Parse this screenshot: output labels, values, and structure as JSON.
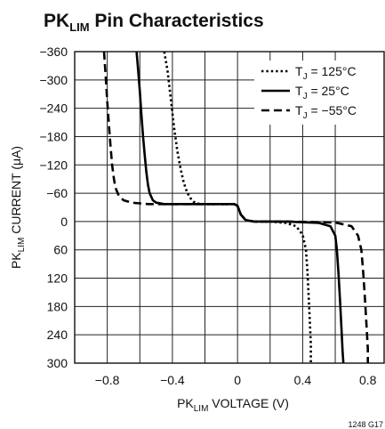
{
  "chart_data": {
    "type": "line",
    "title": {
      "main": "PK",
      "sub": "LIM",
      "rest": " Pin Characteristics"
    },
    "xlabel": {
      "main": "PK",
      "sub": "LIM",
      "rest": " VOLTAGE (V)"
    },
    "ylabel": {
      "main": "PK",
      "sub": "LIM",
      "rest": " CURRENT (μA)"
    },
    "xlim": [
      -1.0,
      0.9
    ],
    "ylim_top_to_bottom": [
      -360,
      300
    ],
    "x_ticks": [
      -0.8,
      -0.4,
      0,
      0.4,
      0.8
    ],
    "x_tick_labels": [
      "−0.8",
      "−0.4",
      "0",
      "0.4",
      "0.8"
    ],
    "x_grid_step": 0.2,
    "y_ticks": [
      -360,
      -300,
      -240,
      -180,
      -120,
      -60,
      0,
      60,
      120,
      180,
      240,
      300
    ],
    "y_tick_labels": [
      "−360",
      "−300",
      "−240",
      "−180",
      "−120",
      "−60",
      "0",
      "60",
      "120",
      "180",
      "240",
      "300"
    ],
    "grid": true,
    "legend_position": "top-right",
    "series": [
      {
        "name": {
          "main": "T",
          "sub": "J",
          "rest": " = 125°C"
        },
        "style": "dotted",
        "x": [
          -0.45,
          -0.43,
          -0.41,
          -0.39,
          -0.37,
          -0.35,
          -0.33,
          -0.31,
          -0.29,
          -0.27,
          -0.25,
          -0.2,
          -0.1,
          -0.02,
          0.0,
          0.02,
          0.05,
          0.1,
          0.2,
          0.3,
          0.36,
          0.4,
          0.42,
          0.43,
          0.44,
          0.45,
          0.45
        ],
        "y": [
          -360,
          -320,
          -260,
          -200,
          -150,
          -112,
          -82,
          -62,
          -50,
          -42,
          -38,
          -37,
          -37,
          -37,
          -33,
          -15,
          -3,
          0,
          0,
          3,
          10,
          28,
          60,
          110,
          180,
          260,
          300
        ]
      },
      {
        "name": {
          "main": "T",
          "sub": "J",
          "rest": " = 25°C"
        },
        "style": "solid",
        "x": [
          -0.62,
          -0.61,
          -0.6,
          -0.59,
          -0.58,
          -0.57,
          -0.56,
          -0.55,
          -0.54,
          -0.52,
          -0.5,
          -0.45,
          -0.3,
          -0.1,
          -0.02,
          0.0,
          0.02,
          0.05,
          0.1,
          0.3,
          0.5,
          0.57,
          0.6,
          0.61,
          0.62,
          0.63,
          0.64,
          0.645,
          0.65
        ],
        "y": [
          -360,
          -320,
          -275,
          -225,
          -180,
          -140,
          -105,
          -78,
          -60,
          -45,
          -40,
          -37,
          -37,
          -37,
          -37,
          -33,
          -15,
          -3,
          0,
          0,
          3,
          10,
          30,
          60,
          110,
          170,
          240,
          275,
          300
        ]
      },
      {
        "name": {
          "main": "T",
          "sub": "J",
          "rest": " = −55°C"
        },
        "style": "dashed",
        "x": [
          -0.82,
          -0.81,
          -0.8,
          -0.79,
          -0.78,
          -0.77,
          -0.76,
          -0.75,
          -0.73,
          -0.7,
          -0.65,
          -0.55,
          -0.4,
          -0.2,
          -0.02,
          0.0,
          0.02,
          0.05,
          0.1,
          0.3,
          0.6,
          0.7,
          0.74,
          0.76,
          0.77,
          0.78,
          0.79,
          0.8,
          0.8
        ],
        "y": [
          -360,
          -310,
          -255,
          -205,
          -160,
          -120,
          -92,
          -72,
          -55,
          -45,
          -40,
          -37,
          -37,
          -37,
          -37,
          -33,
          -15,
          -3,
          0,
          0,
          2,
          10,
          30,
          60,
          100,
          150,
          210,
          270,
          300
        ]
      }
    ]
  },
  "figure_code": "1248 G17"
}
